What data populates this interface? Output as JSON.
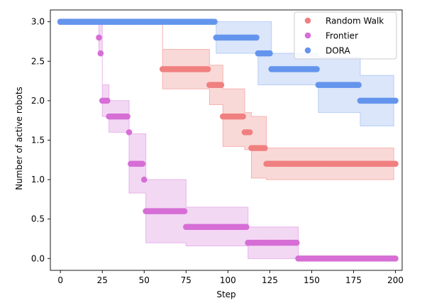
{
  "chart_data": {
    "type": "scatter",
    "xlabel": "Step",
    "ylabel": "Number of active robots",
    "xlim": [
      -6,
      204
    ],
    "ylim": [
      -0.15,
      3.15
    ],
    "xticks": [
      0,
      25,
      50,
      75,
      100,
      125,
      150,
      175,
      200
    ],
    "yticks": [
      0.0,
      0.5,
      1.0,
      1.5,
      2.0,
      2.5,
      3.0
    ],
    "xtick_labels": [
      "0",
      "25",
      "50",
      "75",
      "100",
      "125",
      "150",
      "175",
      "200"
    ],
    "ytick_labels": [
      "0.0",
      "0.5",
      "1.0",
      "1.5",
      "2.0",
      "2.5",
      "3.0"
    ],
    "grid": false,
    "legend_position": "upper-right",
    "series": [
      {
        "name": "Random Walk",
        "color": "#f08080",
        "fill_color": "#f4b3b0",
        "mean_steps": [
          [
            0,
            3.0
          ],
          [
            61,
            2.4
          ],
          [
            89,
            2.2
          ],
          [
            97,
            1.8
          ],
          [
            110,
            1.6
          ],
          [
            114,
            1.4
          ],
          [
            123,
            1.2
          ],
          [
            200,
            1.2
          ]
        ],
        "band_steps": [
          [
            0,
            3.0,
            3.0
          ],
          [
            61,
            2.15,
            2.65
          ],
          [
            89,
            1.95,
            2.45
          ],
          [
            97,
            1.42,
            2.15
          ],
          [
            110,
            1.38,
            1.85
          ],
          [
            114,
            1.02,
            1.8
          ],
          [
            123,
            1.0,
            1.4
          ],
          [
            199,
            1.0,
            1.4
          ]
        ]
      },
      {
        "name": "Frontier",
        "color": "#d66ed6",
        "fill_color": "#e7b2ea",
        "mean_steps": [
          [
            0,
            3.0
          ],
          [
            23,
            2.8
          ],
          [
            24,
            2.6
          ],
          [
            25,
            2.0
          ],
          [
            29,
            1.8
          ],
          [
            41,
            1.6
          ],
          [
            42,
            1.2
          ],
          [
            50,
            1.0
          ],
          [
            51,
            0.6
          ],
          [
            75,
            0.4
          ],
          [
            112,
            0.2
          ],
          [
            142,
            0.0
          ],
          [
            200,
            0.0
          ]
        ],
        "band_steps": [
          [
            0,
            3.0,
            3.0
          ],
          [
            23,
            2.6,
            3.0
          ],
          [
            25,
            1.8,
            2.2
          ],
          [
            29,
            1.6,
            2.0
          ],
          [
            41,
            0.83,
            1.58
          ],
          [
            51,
            0.2,
            1.0
          ],
          [
            75,
            0.16,
            0.65
          ],
          [
            112,
            0.0,
            0.4
          ],
          [
            142,
            0.0,
            0.0
          ],
          [
            199,
            0.0,
            0.0
          ]
        ]
      },
      {
        "name": "DORA",
        "color": "#6495ed",
        "fill_color": "#b7cdf6",
        "mean_steps": [
          [
            0,
            3.0
          ],
          [
            93,
            2.8
          ],
          [
            118,
            2.6
          ],
          [
            126,
            2.4
          ],
          [
            154,
            2.2
          ],
          [
            179,
            2.0
          ],
          [
            200,
            2.0
          ]
        ],
        "band_steps": [
          [
            0,
            3.0,
            3.0
          ],
          [
            93,
            2.6,
            3.0
          ],
          [
            118,
            2.2,
            3.0
          ],
          [
            126,
            2.2,
            2.6
          ],
          [
            154,
            1.85,
            2.55
          ],
          [
            179,
            1.68,
            2.32
          ],
          [
            199,
            1.68,
            2.32
          ]
        ]
      }
    ]
  }
}
